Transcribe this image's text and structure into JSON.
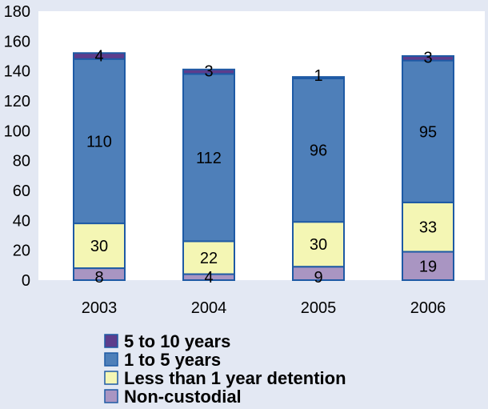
{
  "chart_data": {
    "type": "bar",
    "stacked": true,
    "categories": [
      "2003",
      "2004",
      "2005",
      "2006"
    ],
    "ylim": [
      0,
      180
    ],
    "yticks": [
      0,
      20,
      40,
      60,
      80,
      100,
      120,
      140,
      160,
      180
    ],
    "grid": false,
    "legend_position": "bottom",
    "series": [
      {
        "name": "Non-custodial",
        "values": [
          8,
          4,
          9,
          19
        ],
        "color": "#a995c2"
      },
      {
        "name": "Less than 1 year detention",
        "values": [
          30,
          22,
          30,
          33
        ],
        "color": "#f4f6b4"
      },
      {
        "name": "1 to 5 years",
        "values": [
          110,
          112,
          96,
          95
        ],
        "color": "#4e7fb9"
      },
      {
        "name": "5 to 10 years",
        "values": [
          4,
          3,
          1,
          3
        ],
        "color": "#5d3d8c"
      }
    ],
    "legend_order": [
      "5 to 10 years",
      "1 to 5 years",
      "Less than 1 year detention",
      "Non-custodial"
    ],
    "colors": {
      "plot_background": "#ffffff",
      "page_background": "#e3e8f3",
      "bar_border": "#1e5aa5"
    }
  }
}
